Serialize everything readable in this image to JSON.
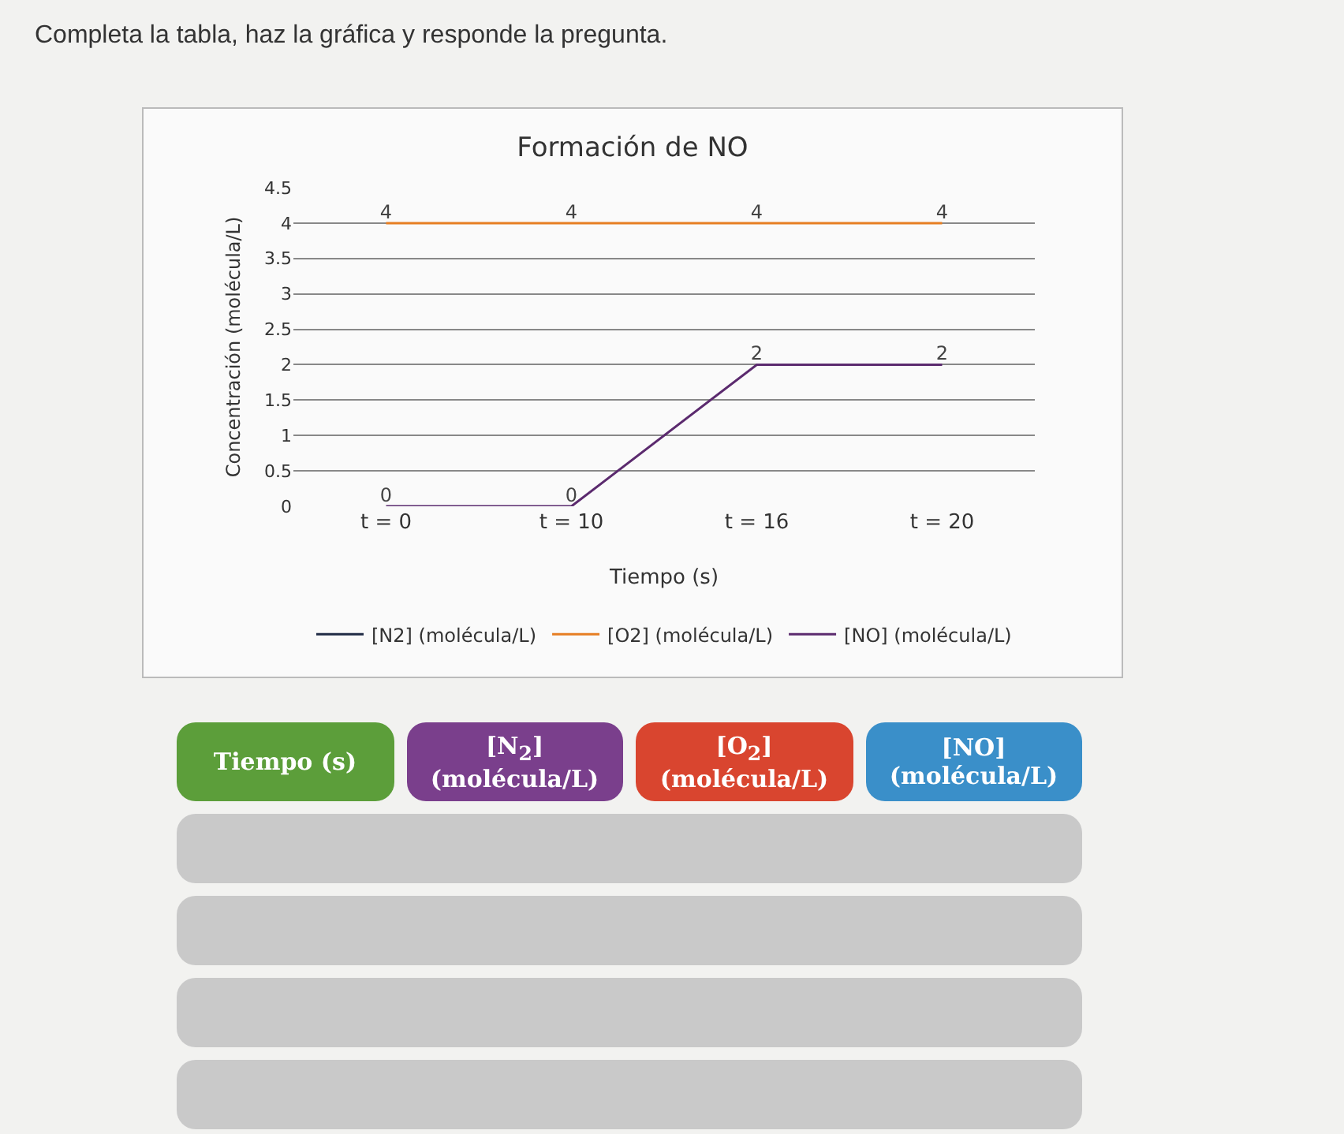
{
  "chart_data": {
    "type": "line",
    "title": "Formación de NO",
    "xlabel": "Tiempo (s)",
    "ylabel": "Concentración (molécula/L)",
    "categories": [
      "t = 0",
      "t = 10",
      "t = 16",
      "t = 20"
    ],
    "series": [
      {
        "name": "[N2] (molécula/L)",
        "color": "#1f2a44",
        "values": [
          null,
          null,
          null,
          null
        ]
      },
      {
        "name": "[O2] (molécula/L)",
        "color": "#e67e22",
        "values": [
          4,
          4,
          4,
          4
        ],
        "value_labels": [
          "4",
          "4",
          "4",
          "4"
        ]
      },
      {
        "name": "[NO] (molécula/L)",
        "color": "#5b2a6e",
        "values": [
          0,
          0,
          2,
          2
        ],
        "value_labels": [
          "0",
          "0",
          "2",
          "2"
        ]
      }
    ],
    "ylim": [
      0,
      4.5
    ],
    "yticks": [
      0,
      0.5,
      1,
      1.5,
      2,
      2.5,
      3,
      3.5,
      4,
      4.5
    ],
    "grid": "y",
    "legend": "bottom",
    "marker": "none",
    "annotations": [
      "Completa la tabla, haz la gráfica y responde la pregunta.",
      "Tiempo (s)",
      "[N$_{2}$] (molécula/L)",
      "[O$_{2}$] (molécula/L)",
      "[NO] (molécula/L)"
    ]
  }
}
